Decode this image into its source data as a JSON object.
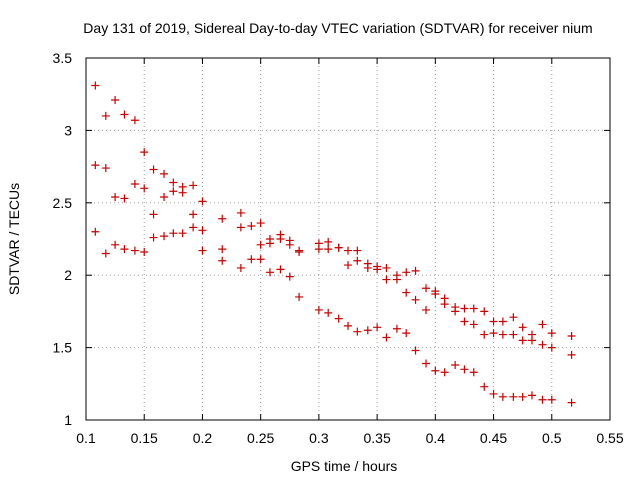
{
  "chart_data": {
    "type": "scatter",
    "title": "Day 131 of 2019, Sidereal Day-to-day VTEC variation (SDTVAR) for receiver nium",
    "xlabel": "GPS time / hours",
    "ylabel": "SDTVAR / TECUs",
    "xlim": [
      0.1,
      0.55
    ],
    "ylim": [
      1,
      3.5
    ],
    "xticks": [
      "0.1",
      "0.15",
      "0.2",
      "0.25",
      "0.3",
      "0.35",
      "0.4",
      "0.45",
      "0.5",
      "0.55"
    ],
    "yticks": [
      "1",
      "1.5",
      "2",
      "2.5",
      "3",
      "3.5"
    ],
    "grid": true,
    "marker": "+",
    "color": "#cc0000",
    "series": [
      {
        "name": "SDTVAR",
        "points": [
          [
            0.108,
            3.31
          ],
          [
            0.108,
            2.76
          ],
          [
            0.108,
            2.3
          ],
          [
            0.117,
            3.1
          ],
          [
            0.117,
            2.74
          ],
          [
            0.117,
            2.15
          ],
          [
            0.125,
            3.21
          ],
          [
            0.125,
            2.54
          ],
          [
            0.125,
            2.21
          ],
          [
            0.133,
            3.11
          ],
          [
            0.133,
            2.53
          ],
          [
            0.133,
            2.18
          ],
          [
            0.142,
            3.07
          ],
          [
            0.142,
            2.63
          ],
          [
            0.142,
            2.17
          ],
          [
            0.15,
            2.85
          ],
          [
            0.15,
            2.6
          ],
          [
            0.15,
            2.16
          ],
          [
            0.158,
            2.73
          ],
          [
            0.158,
            2.42
          ],
          [
            0.158,
            2.26
          ],
          [
            0.167,
            2.7
          ],
          [
            0.167,
            2.54
          ],
          [
            0.167,
            2.27
          ],
          [
            0.175,
            2.64
          ],
          [
            0.175,
            2.58
          ],
          [
            0.175,
            2.29
          ],
          [
            0.183,
            2.61
          ],
          [
            0.183,
            2.57
          ],
          [
            0.183,
            2.29
          ],
          [
            0.192,
            2.62
          ],
          [
            0.192,
            2.42
          ],
          [
            0.192,
            2.33
          ],
          [
            0.2,
            2.51
          ],
          [
            0.2,
            2.31
          ],
          [
            0.2,
            2.17
          ],
          [
            0.217,
            2.39
          ],
          [
            0.217,
            2.18
          ],
          [
            0.217,
            2.1
          ],
          [
            0.233,
            2.43
          ],
          [
            0.233,
            2.33
          ],
          [
            0.233,
            2.05
          ],
          [
            0.242,
            2.34
          ],
          [
            0.242,
            2.11
          ],
          [
            0.25,
            2.36
          ],
          [
            0.25,
            2.21
          ],
          [
            0.25,
            2.11
          ],
          [
            0.258,
            2.25
          ],
          [
            0.258,
            2.22
          ],
          [
            0.258,
            2.02
          ],
          [
            0.267,
            2.28
          ],
          [
            0.267,
            2.25
          ],
          [
            0.267,
            2.04
          ],
          [
            0.275,
            2.24
          ],
          [
            0.275,
            2.21
          ],
          [
            0.275,
            1.99
          ],
          [
            0.283,
            2.17
          ],
          [
            0.283,
            2.16
          ],
          [
            0.283,
            1.85
          ],
          [
            0.3,
            2.22
          ],
          [
            0.3,
            2.18
          ],
          [
            0.3,
            1.76
          ],
          [
            0.308,
            2.23
          ],
          [
            0.308,
            2.18
          ],
          [
            0.308,
            1.74
          ],
          [
            0.317,
            2.19
          ],
          [
            0.317,
            2.19
          ],
          [
            0.317,
            1.7
          ],
          [
            0.325,
            2.17
          ],
          [
            0.325,
            2.07
          ],
          [
            0.325,
            1.65
          ],
          [
            0.333,
            2.17
          ],
          [
            0.333,
            2.1
          ],
          [
            0.333,
            1.61
          ],
          [
            0.342,
            2.08
          ],
          [
            0.342,
            2.05
          ],
          [
            0.342,
            1.62
          ],
          [
            0.35,
            2.06
          ],
          [
            0.35,
            2.04
          ],
          [
            0.35,
            1.64
          ],
          [
            0.358,
            2.05
          ],
          [
            0.358,
            1.97
          ],
          [
            0.358,
            1.57
          ],
          [
            0.367,
            2.0
          ],
          [
            0.367,
            1.97
          ],
          [
            0.367,
            1.63
          ],
          [
            0.375,
            2.02
          ],
          [
            0.375,
            1.88
          ],
          [
            0.375,
            1.6
          ],
          [
            0.383,
            2.03
          ],
          [
            0.383,
            1.83
          ],
          [
            0.383,
            1.48
          ],
          [
            0.392,
            1.91
          ],
          [
            0.392,
            1.76
          ],
          [
            0.392,
            1.39
          ],
          [
            0.4,
            1.89
          ],
          [
            0.4,
            1.87
          ],
          [
            0.4,
            1.34
          ],
          [
            0.408,
            1.84
          ],
          [
            0.408,
            1.8
          ],
          [
            0.408,
            1.33
          ],
          [
            0.417,
            1.78
          ],
          [
            0.417,
            1.75
          ],
          [
            0.417,
            1.38
          ],
          [
            0.425,
            1.77
          ],
          [
            0.425,
            1.68
          ],
          [
            0.425,
            1.35
          ],
          [
            0.433,
            1.77
          ],
          [
            0.433,
            1.66
          ],
          [
            0.433,
            1.33
          ],
          [
            0.442,
            1.75
          ],
          [
            0.442,
            1.59
          ],
          [
            0.442,
            1.23
          ],
          [
            0.45,
            1.68
          ],
          [
            0.45,
            1.6
          ],
          [
            0.45,
            1.18
          ],
          [
            0.458,
            1.68
          ],
          [
            0.458,
            1.59
          ],
          [
            0.458,
            1.16
          ],
          [
            0.467,
            1.71
          ],
          [
            0.467,
            1.59
          ],
          [
            0.467,
            1.16
          ],
          [
            0.475,
            1.64
          ],
          [
            0.475,
            1.55
          ],
          [
            0.475,
            1.16
          ],
          [
            0.483,
            1.59
          ],
          [
            0.483,
            1.55
          ],
          [
            0.483,
            1.17
          ],
          [
            0.492,
            1.66
          ],
          [
            0.492,
            1.52
          ],
          [
            0.492,
            1.14
          ],
          [
            0.5,
            1.6
          ],
          [
            0.5,
            1.5
          ],
          [
            0.5,
            1.14
          ],
          [
            0.517,
            1.58
          ],
          [
            0.517,
            1.45
          ],
          [
            0.517,
            1.12
          ]
        ]
      }
    ]
  }
}
